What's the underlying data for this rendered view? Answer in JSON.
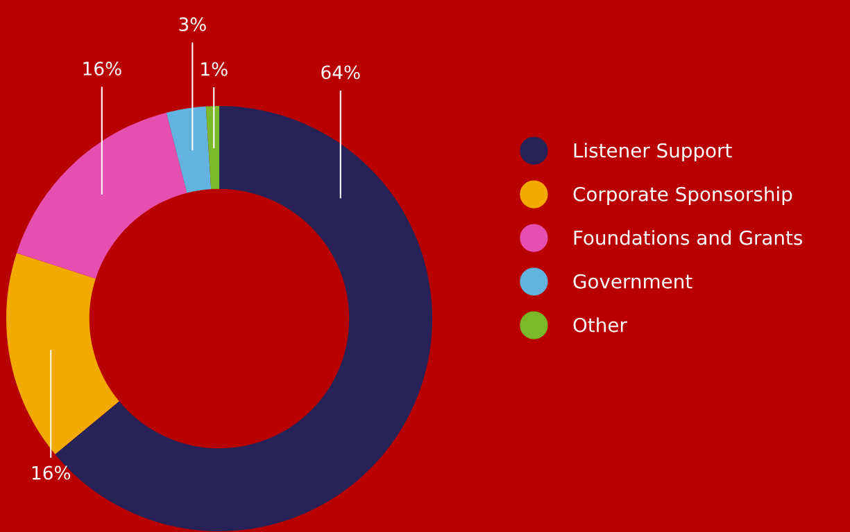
{
  "chart_data": {
    "type": "donut",
    "categories": [
      "Listener Support",
      "Corporate Sponsorship",
      "Foundations and Grants",
      "Government",
      "Other"
    ],
    "values": [
      64,
      16,
      16,
      3,
      1
    ],
    "colors": [
      "#272257",
      "#f2a900",
      "#e64fb0",
      "#62b3e0",
      "#7ab929"
    ],
    "value_labels": [
      "64%",
      "16%",
      "16%",
      "3%",
      "1%"
    ],
    "legend": "right"
  }
}
